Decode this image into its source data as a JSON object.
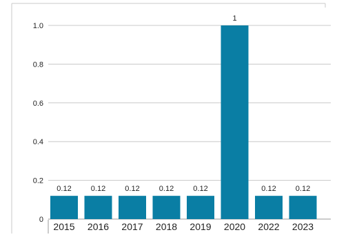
{
  "chart_data": {
    "type": "bar",
    "categories": [
      "2015",
      "2016",
      "2017",
      "2018",
      "2019",
      "2020",
      "2022",
      "2023"
    ],
    "values": [
      0.12,
      0.12,
      0.12,
      0.12,
      0.12,
      1,
      0.12,
      0.12
    ],
    "value_labels": [
      "0.12",
      "0.12",
      "0.12",
      "0.12",
      "0.12",
      "1",
      "0.12",
      "0.12"
    ],
    "ylim": [
      0,
      1.0
    ],
    "yticks": [
      0,
      0.2,
      0.4,
      0.6,
      0.8,
      1.0
    ],
    "ytick_labels": [
      "0",
      "0.2",
      "0.4",
      "0.6",
      "0.8",
      "1.0"
    ],
    "grid": true,
    "legend": "none",
    "colors": {
      "bar": "#0a7ea4",
      "grid": "#c8c8c8",
      "axis": "#9a9a9a",
      "frame": "#c8c8c8",
      "text": "#222222"
    }
  }
}
